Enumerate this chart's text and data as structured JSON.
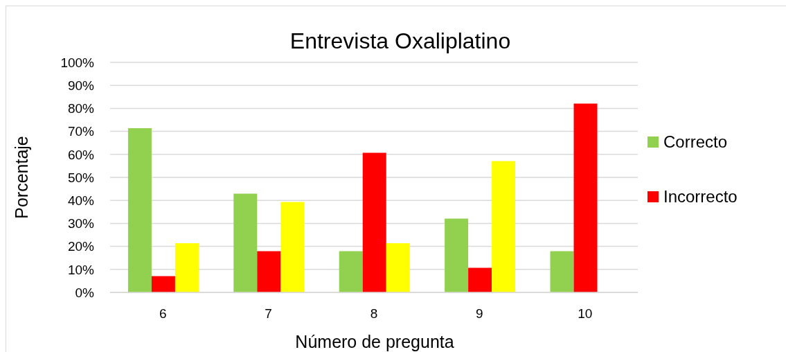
{
  "chart_data": {
    "type": "bar",
    "title": "Entrevista Oxaliplatino",
    "xlabel": "Número de pregunta",
    "ylabel": "Porcentaje",
    "categories": [
      "6",
      "7",
      "8",
      "9",
      "10"
    ],
    "series": [
      {
        "name": "Correcto",
        "color": "#92d050",
        "values": [
          71.4,
          42.9,
          17.9,
          32.1,
          17.9
        ]
      },
      {
        "name": "Incorrecto",
        "color": "#ff0000",
        "values": [
          7.1,
          17.9,
          60.7,
          10.7,
          82.1
        ]
      },
      {
        "color": "#ffff00",
        "values": [
          21.4,
          39.3,
          21.4,
          57.1,
          null
        ]
      }
    ],
    "ylim": [
      0,
      100
    ],
    "yticks": [
      {
        "value": 0,
        "label": "0%"
      },
      {
        "value": 10,
        "label": "10%"
      },
      {
        "value": 20,
        "label": "20%"
      },
      {
        "value": 30,
        "label": "30%"
      },
      {
        "value": 40,
        "label": "40%"
      },
      {
        "value": 50,
        "label": "50%"
      },
      {
        "value": 60,
        "label": "60%"
      },
      {
        "value": 70,
        "label": "70%"
      },
      {
        "value": 80,
        "label": "80%"
      },
      {
        "value": 90,
        "label": "90%"
      },
      {
        "value": 100,
        "label": "100%"
      }
    ],
    "grid": "y",
    "legend": "right"
  }
}
